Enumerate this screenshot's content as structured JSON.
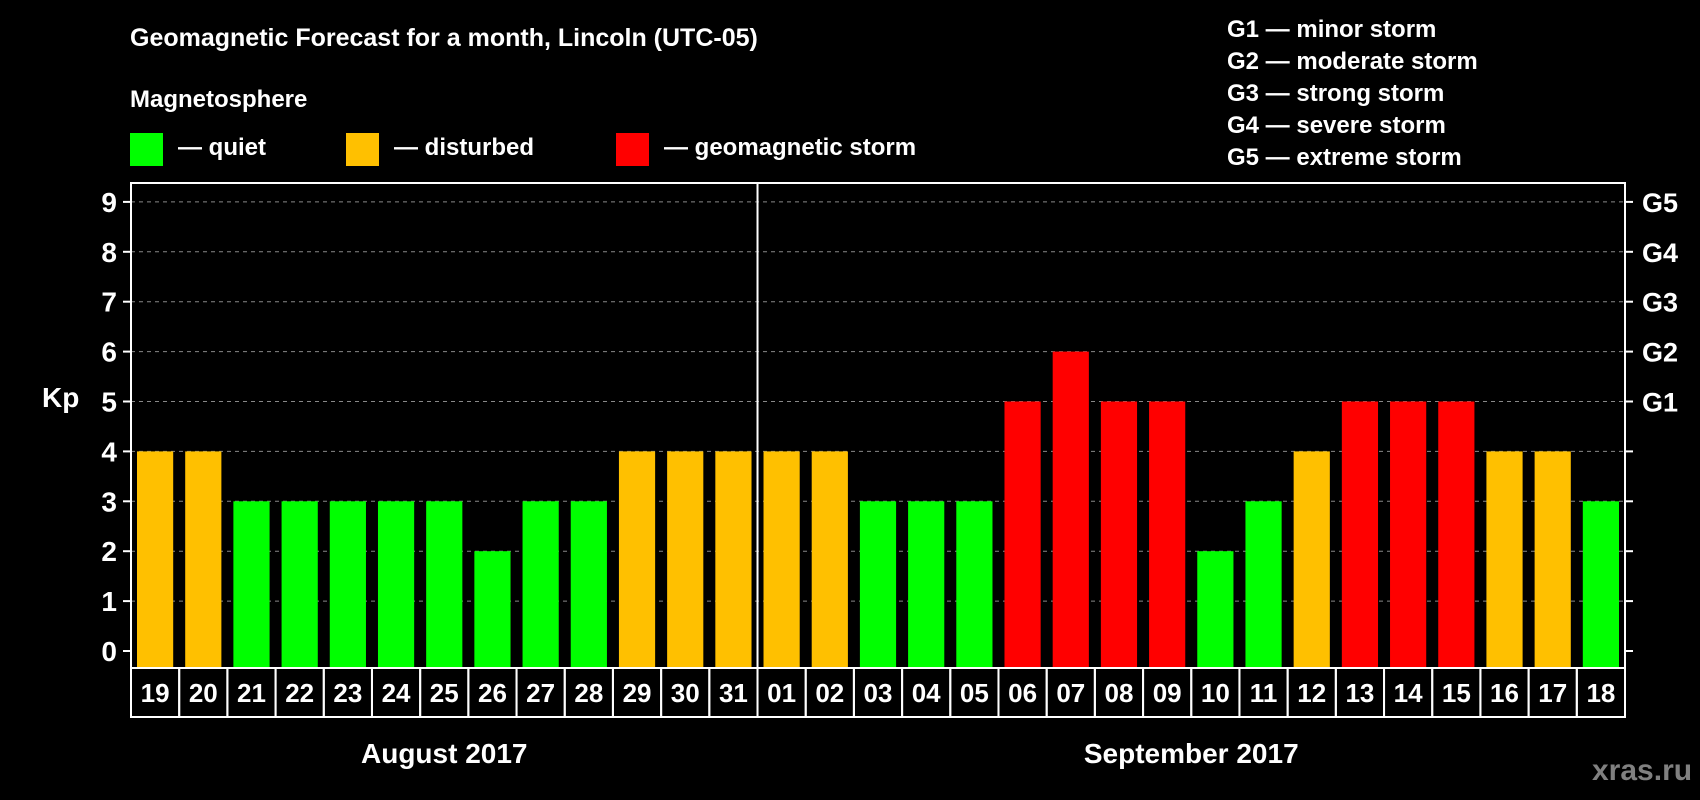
{
  "chart_data": {
    "type": "bar",
    "title": "Geomagnetic Forecast for a month, Lincoln (UTC-05)",
    "ylabel": "Kp",
    "ylim": [
      0,
      9
    ],
    "yticks": [
      "0",
      "1",
      "2",
      "3",
      "4",
      "5",
      "6",
      "7",
      "8",
      "9"
    ],
    "right_ticks": [
      {
        "value": 5,
        "label": "G1"
      },
      {
        "value": 6,
        "label": "G2"
      },
      {
        "value": 7,
        "label": "G3"
      },
      {
        "value": 8,
        "label": "G4"
      },
      {
        "value": 9,
        "label": "G5"
      }
    ],
    "categories": [
      "19",
      "20",
      "21",
      "22",
      "23",
      "24",
      "25",
      "26",
      "27",
      "28",
      "29",
      "30",
      "31",
      "01",
      "02",
      "03",
      "04",
      "05",
      "06",
      "07",
      "08",
      "09",
      "10",
      "11",
      "12",
      "13",
      "14",
      "15",
      "16",
      "17",
      "18"
    ],
    "values": [
      4,
      4,
      3,
      3,
      3,
      3,
      3,
      2,
      3,
      3,
      4,
      4,
      4,
      4,
      4,
      3,
      3,
      3,
      5,
      6,
      5,
      5,
      2,
      3,
      4,
      5,
      5,
      5,
      4,
      4,
      3
    ],
    "months": [
      {
        "label": "August 2017",
        "start": 0,
        "count": 13
      },
      {
        "label": "September 2017",
        "start": 13,
        "count": 18
      }
    ],
    "legend_title": "Magnetosphere",
    "legend": [
      {
        "label": "— quiet",
        "color": "#00ff00"
      },
      {
        "label": "— disturbed",
        "color": "#ffc000"
      },
      {
        "label": "— geomagnetic storm",
        "color": "#ff0000"
      }
    ],
    "storm_scale": [
      "G1 — minor storm",
      "G2 — moderate storm",
      "G3 — strong storm",
      "G4 — severe storm",
      "G5 — extreme storm"
    ],
    "grid": true
  },
  "watermark": "xras.ru"
}
